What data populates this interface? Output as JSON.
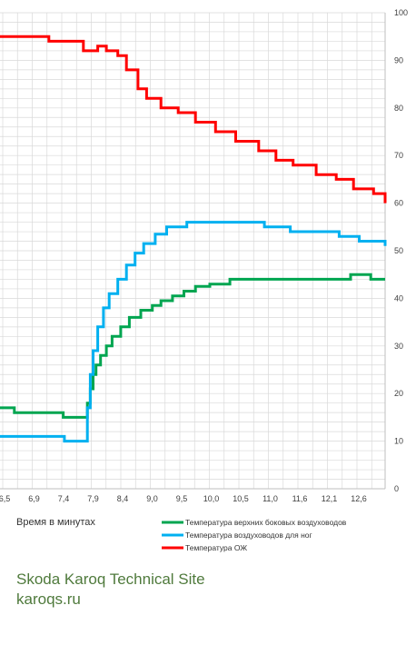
{
  "brand": {
    "site_name": "Skoda Karoq Technical Site",
    "url": "karoqs.ru"
  },
  "chart_data": {
    "type": "line",
    "xlabel": "Время в минутах",
    "ylabel": "",
    "title": "",
    "x_ticks": [
      "6,5",
      "6,9",
      "7,4",
      "7,9",
      "8,4",
      "9,0",
      "9,5",
      "10,0",
      "10,5",
      "11,0",
      "11,6",
      "12,1",
      "12,6"
    ],
    "xlim": [
      6.25,
      12.95
    ],
    "ylim": [
      0,
      100
    ],
    "y_ticks": [
      0,
      10,
      20,
      30,
      40,
      50,
      60,
      70,
      80,
      90,
      100
    ],
    "grid": true,
    "legend_position": "bottom-right",
    "series": [
      {
        "name": "Температура верхних боковых воздуховодов",
        "color": "#00a550",
        "x": [
          6.25,
          6.5,
          7.35,
          7.72,
          7.77,
          7.82,
          7.87,
          7.92,
          8.0,
          8.1,
          8.2,
          8.35,
          8.5,
          8.7,
          8.9,
          9.05,
          9.25,
          9.45,
          9.65,
          9.9,
          10.25,
          10.7,
          11.3,
          12.2,
          12.35,
          12.7,
          12.95
        ],
        "y": [
          17,
          16,
          15,
          15,
          18,
          21,
          24,
          26,
          28,
          30,
          32,
          34,
          36,
          37.5,
          38.5,
          39.5,
          40.5,
          41.5,
          42.5,
          43,
          44,
          44,
          44,
          44,
          45,
          44,
          44
        ]
      },
      {
        "name": "Температура воздуховодов для ног",
        "color": "#00b0f0",
        "x": [
          6.25,
          6.5,
          7.05,
          7.37,
          7.72,
          7.77,
          7.82,
          7.87,
          7.95,
          8.05,
          8.15,
          8.3,
          8.45,
          8.6,
          8.75,
          8.95,
          9.15,
          9.5,
          10.5,
          10.85,
          11.3,
          12.15,
          12.5,
          12.95
        ],
        "y": [
          11,
          11,
          11,
          10,
          10,
          17,
          24,
          29,
          34,
          38,
          41,
          44,
          47,
          49.5,
          51.5,
          53.5,
          55,
          56,
          56,
          55,
          54,
          53,
          52,
          51
        ]
      },
      {
        "name": "Температура ОЖ",
        "color": "#ff0000",
        "x": [
          6.25,
          6.9,
          7.1,
          7.45,
          7.7,
          7.85,
          7.95,
          8.1,
          8.3,
          8.45,
          8.65,
          8.8,
          9.05,
          9.35,
          9.65,
          10.0,
          10.35,
          10.75,
          11.05,
          11.35,
          11.75,
          12.1,
          12.4,
          12.75,
          12.95
        ],
        "y": [
          95,
          95,
          94,
          94,
          92,
          92,
          93,
          92,
          91,
          88,
          84,
          82,
          80,
          79,
          77,
          75,
          73,
          71,
          69,
          68,
          66,
          65,
          63,
          62,
          60
        ]
      }
    ]
  },
  "colors": {
    "grid": "#d9d9d9",
    "axis": "#bfbfbf",
    "brand": "#4f7a3c"
  }
}
